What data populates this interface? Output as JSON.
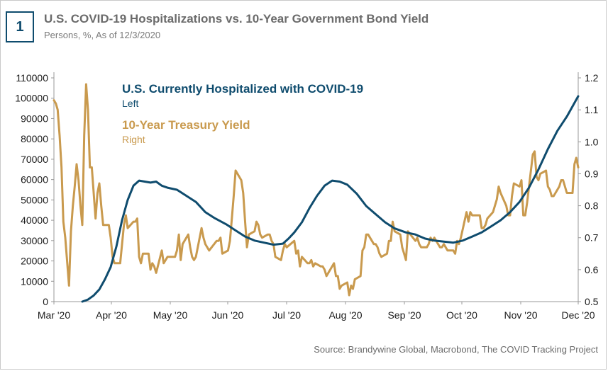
{
  "header": {
    "badge": "1",
    "title": "U.S. COVID-19 Hospitalizations vs. 10-Year Government Bond Yield",
    "subtitle": "Persons, %, As of 12/3/2020"
  },
  "footer": {
    "source": "Source: Brandywine Global, Macrobond, The COVID Tracking Project"
  },
  "colors": {
    "hospitalized": "#0f4c6e",
    "yield": "#c99a4e",
    "axis": "#999999"
  },
  "chart_data": {
    "type": "line",
    "title": "U.S. COVID-19 Hospitalizations vs. 10-Year Government Bond Yield",
    "subtitle": "Persons, %, As of 12/3/2020",
    "x_ticks": [
      "Mar '20",
      "Apr '20",
      "May '20",
      "Jun '20",
      "Jul '20",
      "Aug '20",
      "Sep '20",
      "Oct '20",
      "Nov '20",
      "Dec '20"
    ],
    "x_range": [
      "2020-03-01",
      "2020-12-03"
    ],
    "y_left": {
      "ticks": [
        0,
        10000,
        20000,
        30000,
        40000,
        50000,
        60000,
        70000,
        80000,
        90000,
        100000,
        110000
      ],
      "ylim": [
        0,
        110000
      ]
    },
    "y_right": {
      "ticks": [
        0.5,
        0.6,
        0.7,
        0.8,
        0.9,
        1.0,
        1.1,
        1.2
      ],
      "ylim": [
        0.5,
        1.2
      ]
    },
    "grid": false,
    "legend": [
      {
        "name": "U.S. Currently Hospitalized with COVID-19",
        "note": "Left"
      },
      {
        "name": "10-Year Treasury Yield",
        "note": "Right"
      }
    ],
    "series": [
      {
        "name": "U.S. Currently Hospitalized with COVID-19",
        "axis": "left",
        "points": [
          [
            "2020-03-16",
            0
          ],
          [
            "2020-03-19",
            1000
          ],
          [
            "2020-03-22",
            3000
          ],
          [
            "2020-03-25",
            6000
          ],
          [
            "2020-03-28",
            11000
          ],
          [
            "2020-03-31",
            17000
          ],
          [
            "2020-04-03",
            27000
          ],
          [
            "2020-04-06",
            40000
          ],
          [
            "2020-04-09",
            50000
          ],
          [
            "2020-04-12",
            57000
          ],
          [
            "2020-04-15",
            59500
          ],
          [
            "2020-04-18",
            59000
          ],
          [
            "2020-04-21",
            58500
          ],
          [
            "2020-04-24",
            59000
          ],
          [
            "2020-04-27",
            57000
          ],
          [
            "2020-04-30",
            56000
          ],
          [
            "2020-05-05",
            55000
          ],
          [
            "2020-05-10",
            52000
          ],
          [
            "2020-05-15",
            49000
          ],
          [
            "2020-05-20",
            44000
          ],
          [
            "2020-05-25",
            41000
          ],
          [
            "2020-05-31",
            38000
          ],
          [
            "2020-06-05",
            35000
          ],
          [
            "2020-06-10",
            32000
          ],
          [
            "2020-06-15",
            30000
          ],
          [
            "2020-06-20",
            29000
          ],
          [
            "2020-06-25",
            28000
          ],
          [
            "2020-06-30",
            28500
          ],
          [
            "2020-07-03",
            31000
          ],
          [
            "2020-07-06",
            34000
          ],
          [
            "2020-07-10",
            39000
          ],
          [
            "2020-07-14",
            46000
          ],
          [
            "2020-07-18",
            52000
          ],
          [
            "2020-07-22",
            57000
          ],
          [
            "2020-07-26",
            59500
          ],
          [
            "2020-07-30",
            59000
          ],
          [
            "2020-08-03",
            57500
          ],
          [
            "2020-08-08",
            53000
          ],
          [
            "2020-08-13",
            47000
          ],
          [
            "2020-08-18",
            43000
          ],
          [
            "2020-08-23",
            39000
          ],
          [
            "2020-08-28",
            36000
          ],
          [
            "2020-09-03",
            34000
          ],
          [
            "2020-09-08",
            33000
          ],
          [
            "2020-09-13",
            31000
          ],
          [
            "2020-09-18",
            30000
          ],
          [
            "2020-09-23",
            29500
          ],
          [
            "2020-09-28",
            29000
          ],
          [
            "2020-10-03",
            30000
          ],
          [
            "2020-10-08",
            32000
          ],
          [
            "2020-10-13",
            34000
          ],
          [
            "2020-10-18",
            37000
          ],
          [
            "2020-10-23",
            40000
          ],
          [
            "2020-10-28",
            44000
          ],
          [
            "2020-11-02",
            49000
          ],
          [
            "2020-11-07",
            56000
          ],
          [
            "2020-11-12",
            65000
          ],
          [
            "2020-11-17",
            75000
          ],
          [
            "2020-11-22",
            84000
          ],
          [
            "2020-11-27",
            91000
          ],
          [
            "2020-12-03",
            101000
          ]
        ]
      },
      {
        "name": "10-Year Treasury Yield",
        "axis": "right",
        "points": [
          [
            "2020-03-01",
            1.13
          ],
          [
            "2020-03-02",
            1.12
          ],
          [
            "2020-03-03",
            1.1
          ],
          [
            "2020-03-04",
            1.02
          ],
          [
            "2020-03-05",
            0.92
          ],
          [
            "2020-03-06",
            0.75
          ],
          [
            "2020-03-07",
            0.7
          ],
          [
            "2020-03-09",
            0.55
          ],
          [
            "2020-03-10",
            0.72
          ],
          [
            "2020-03-11",
            0.8
          ],
          [
            "2020-03-12",
            0.86
          ],
          [
            "2020-03-13",
            0.93
          ],
          [
            "2020-03-14",
            0.88
          ],
          [
            "2020-03-15",
            0.8
          ],
          [
            "2020-03-16",
            0.74
          ],
          [
            "2020-03-17",
            1.02
          ],
          [
            "2020-03-18",
            1.18
          ],
          [
            "2020-03-19",
            1.1
          ],
          [
            "2020-03-20",
            0.92
          ],
          [
            "2020-03-21",
            0.92
          ],
          [
            "2020-03-23",
            0.76
          ],
          [
            "2020-03-24",
            0.84
          ],
          [
            "2020-03-25",
            0.87
          ],
          [
            "2020-03-26",
            0.8
          ],
          [
            "2020-03-27",
            0.74
          ],
          [
            "2020-03-30",
            0.74
          ],
          [
            "2020-03-31",
            0.7
          ],
          [
            "2020-04-01",
            0.64
          ],
          [
            "2020-04-02",
            0.62
          ],
          [
            "2020-04-05",
            0.62
          ],
          [
            "2020-04-07",
            0.74
          ],
          [
            "2020-04-08",
            0.77
          ],
          [
            "2020-04-09",
            0.73
          ],
          [
            "2020-04-12",
            0.75
          ],
          [
            "2020-04-13",
            0.75
          ],
          [
            "2020-04-14",
            0.76
          ],
          [
            "2020-04-15",
            0.64
          ],
          [
            "2020-04-16",
            0.62
          ],
          [
            "2020-04-17",
            0.65
          ],
          [
            "2020-04-20",
            0.65
          ],
          [
            "2020-04-21",
            0.6
          ],
          [
            "2020-04-22",
            0.62
          ],
          [
            "2020-04-23",
            0.61
          ],
          [
            "2020-04-24",
            0.59
          ],
          [
            "2020-04-27",
            0.66
          ],
          [
            "2020-04-28",
            0.62
          ],
          [
            "2020-04-29",
            0.63
          ],
          [
            "2020-04-30",
            0.64
          ],
          [
            "2020-05-01",
            0.64
          ],
          [
            "2020-05-04",
            0.64
          ],
          [
            "2020-05-05",
            0.66
          ],
          [
            "2020-05-06",
            0.71
          ],
          [
            "2020-05-07",
            0.63
          ],
          [
            "2020-05-08",
            0.68
          ],
          [
            "2020-05-11",
            0.71
          ],
          [
            "2020-05-12",
            0.67
          ],
          [
            "2020-05-13",
            0.64
          ],
          [
            "2020-05-14",
            0.63
          ],
          [
            "2020-05-15",
            0.64
          ],
          [
            "2020-05-18",
            0.73
          ],
          [
            "2020-05-19",
            0.7
          ],
          [
            "2020-05-20",
            0.68
          ],
          [
            "2020-05-21",
            0.67
          ],
          [
            "2020-05-22",
            0.66
          ],
          [
            "2020-05-26",
            0.69
          ],
          [
            "2020-05-27",
            0.69
          ],
          [
            "2020-05-28",
            0.7
          ],
          [
            "2020-05-29",
            0.65
          ],
          [
            "2020-06-01",
            0.66
          ],
          [
            "2020-06-02",
            0.69
          ],
          [
            "2020-06-03",
            0.76
          ],
          [
            "2020-06-04",
            0.83
          ],
          [
            "2020-06-05",
            0.91
          ],
          [
            "2020-06-08",
            0.88
          ],
          [
            "2020-06-09",
            0.84
          ],
          [
            "2020-06-10",
            0.75
          ],
          [
            "2020-06-11",
            0.67
          ],
          [
            "2020-06-12",
            0.71
          ],
          [
            "2020-06-15",
            0.72
          ],
          [
            "2020-06-16",
            0.75
          ],
          [
            "2020-06-17",
            0.74
          ],
          [
            "2020-06-18",
            0.71
          ],
          [
            "2020-06-19",
            0.7
          ],
          [
            "2020-06-22",
            0.71
          ],
          [
            "2020-06-23",
            0.71
          ],
          [
            "2020-06-24",
            0.69
          ],
          [
            "2020-06-25",
            0.68
          ],
          [
            "2020-06-26",
            0.64
          ],
          [
            "2020-06-29",
            0.63
          ],
          [
            "2020-06-30",
            0.66
          ],
          [
            "2020-07-01",
            0.68
          ],
          [
            "2020-07-02",
            0.67
          ],
          [
            "2020-07-06",
            0.69
          ],
          [
            "2020-07-07",
            0.65
          ],
          [
            "2020-07-08",
            0.66
          ],
          [
            "2020-07-09",
            0.61
          ],
          [
            "2020-07-10",
            0.64
          ],
          [
            "2020-07-13",
            0.62
          ],
          [
            "2020-07-14",
            0.62
          ],
          [
            "2020-07-15",
            0.63
          ],
          [
            "2020-07-16",
            0.61
          ],
          [
            "2020-07-17",
            0.62
          ],
          [
            "2020-07-20",
            0.61
          ],
          [
            "2020-07-21",
            0.61
          ],
          [
            "2020-07-22",
            0.6
          ],
          [
            "2020-07-23",
            0.58
          ],
          [
            "2020-07-24",
            0.59
          ],
          [
            "2020-07-27",
            0.62
          ],
          [
            "2020-07-28",
            0.58
          ],
          [
            "2020-07-29",
            0.58
          ],
          [
            "2020-07-30",
            0.54
          ],
          [
            "2020-07-31",
            0.55
          ],
          [
            "2020-08-03",
            0.56
          ],
          [
            "2020-08-04",
            0.52
          ],
          [
            "2020-08-05",
            0.55
          ],
          [
            "2020-08-06",
            0.54
          ],
          [
            "2020-08-07",
            0.57
          ],
          [
            "2020-08-10",
            0.58
          ],
          [
            "2020-08-11",
            0.66
          ],
          [
            "2020-08-12",
            0.67
          ],
          [
            "2020-08-13",
            0.71
          ],
          [
            "2020-08-14",
            0.71
          ],
          [
            "2020-08-17",
            0.68
          ],
          [
            "2020-08-18",
            0.68
          ],
          [
            "2020-08-19",
            0.67
          ],
          [
            "2020-08-20",
            0.65
          ],
          [
            "2020-08-21",
            0.64
          ],
          [
            "2020-08-24",
            0.65
          ],
          [
            "2020-08-25",
            0.69
          ],
          [
            "2020-08-26",
            0.69
          ],
          [
            "2020-08-27",
            0.75
          ],
          [
            "2020-08-28",
            0.72
          ],
          [
            "2020-08-31",
            0.71
          ],
          [
            "2020-09-01",
            0.67
          ],
          [
            "2020-09-02",
            0.65
          ],
          [
            "2020-09-03",
            0.63
          ],
          [
            "2020-09-04",
            0.72
          ],
          [
            "2020-09-08",
            0.69
          ],
          [
            "2020-09-09",
            0.7
          ],
          [
            "2020-09-10",
            0.68
          ],
          [
            "2020-09-11",
            0.67
          ],
          [
            "2020-09-14",
            0.67
          ],
          [
            "2020-09-15",
            0.68
          ],
          [
            "2020-09-16",
            0.7
          ],
          [
            "2020-09-17",
            0.69
          ],
          [
            "2020-09-18",
            0.7
          ],
          [
            "2020-09-21",
            0.67
          ],
          [
            "2020-09-22",
            0.67
          ],
          [
            "2020-09-23",
            0.68
          ],
          [
            "2020-09-24",
            0.67
          ],
          [
            "2020-09-25",
            0.66
          ],
          [
            "2020-09-28",
            0.66
          ],
          [
            "2020-09-29",
            0.65
          ],
          [
            "2020-09-30",
            0.69
          ],
          [
            "2020-10-01",
            0.68
          ],
          [
            "2020-10-02",
            0.7
          ],
          [
            "2020-10-05",
            0.78
          ],
          [
            "2020-10-06",
            0.75
          ],
          [
            "2020-10-07",
            0.78
          ],
          [
            "2020-10-08",
            0.77
          ],
          [
            "2020-10-09",
            0.77
          ],
          [
            "2020-10-12",
            0.77
          ],
          [
            "2020-10-13",
            0.73
          ],
          [
            "2020-10-14",
            0.73
          ],
          [
            "2020-10-15",
            0.74
          ],
          [
            "2020-10-16",
            0.76
          ],
          [
            "2020-10-19",
            0.78
          ],
          [
            "2020-10-20",
            0.8
          ],
          [
            "2020-10-21",
            0.82
          ],
          [
            "2020-10-22",
            0.86
          ],
          [
            "2020-10-23",
            0.84
          ],
          [
            "2020-10-26",
            0.8
          ],
          [
            "2020-10-27",
            0.77
          ],
          [
            "2020-10-28",
            0.77
          ],
          [
            "2020-10-29",
            0.83
          ],
          [
            "2020-10-30",
            0.87
          ],
          [
            "2020-11-02",
            0.86
          ],
          [
            "2020-11-03",
            0.88
          ],
          [
            "2020-11-04",
            0.77
          ],
          [
            "2020-11-05",
            0.77
          ],
          [
            "2020-11-06",
            0.81
          ],
          [
            "2020-11-09",
            0.96
          ],
          [
            "2020-11-10",
            0.97
          ],
          [
            "2020-11-11",
            0.89
          ],
          [
            "2020-11-12",
            0.88
          ],
          [
            "2020-11-13",
            0.9
          ],
          [
            "2020-11-16",
            0.91
          ],
          [
            "2020-11-17",
            0.86
          ],
          [
            "2020-11-18",
            0.85
          ],
          [
            "2020-11-19",
            0.83
          ],
          [
            "2020-11-20",
            0.83
          ],
          [
            "2020-11-23",
            0.86
          ],
          [
            "2020-11-24",
            0.88
          ],
          [
            "2020-11-25",
            0.88
          ],
          [
            "2020-11-27",
            0.84
          ],
          [
            "2020-11-30",
            0.84
          ],
          [
            "2020-12-01",
            0.93
          ],
          [
            "2020-12-02",
            0.95
          ],
          [
            "2020-12-03",
            0.92
          ]
        ]
      }
    ]
  }
}
